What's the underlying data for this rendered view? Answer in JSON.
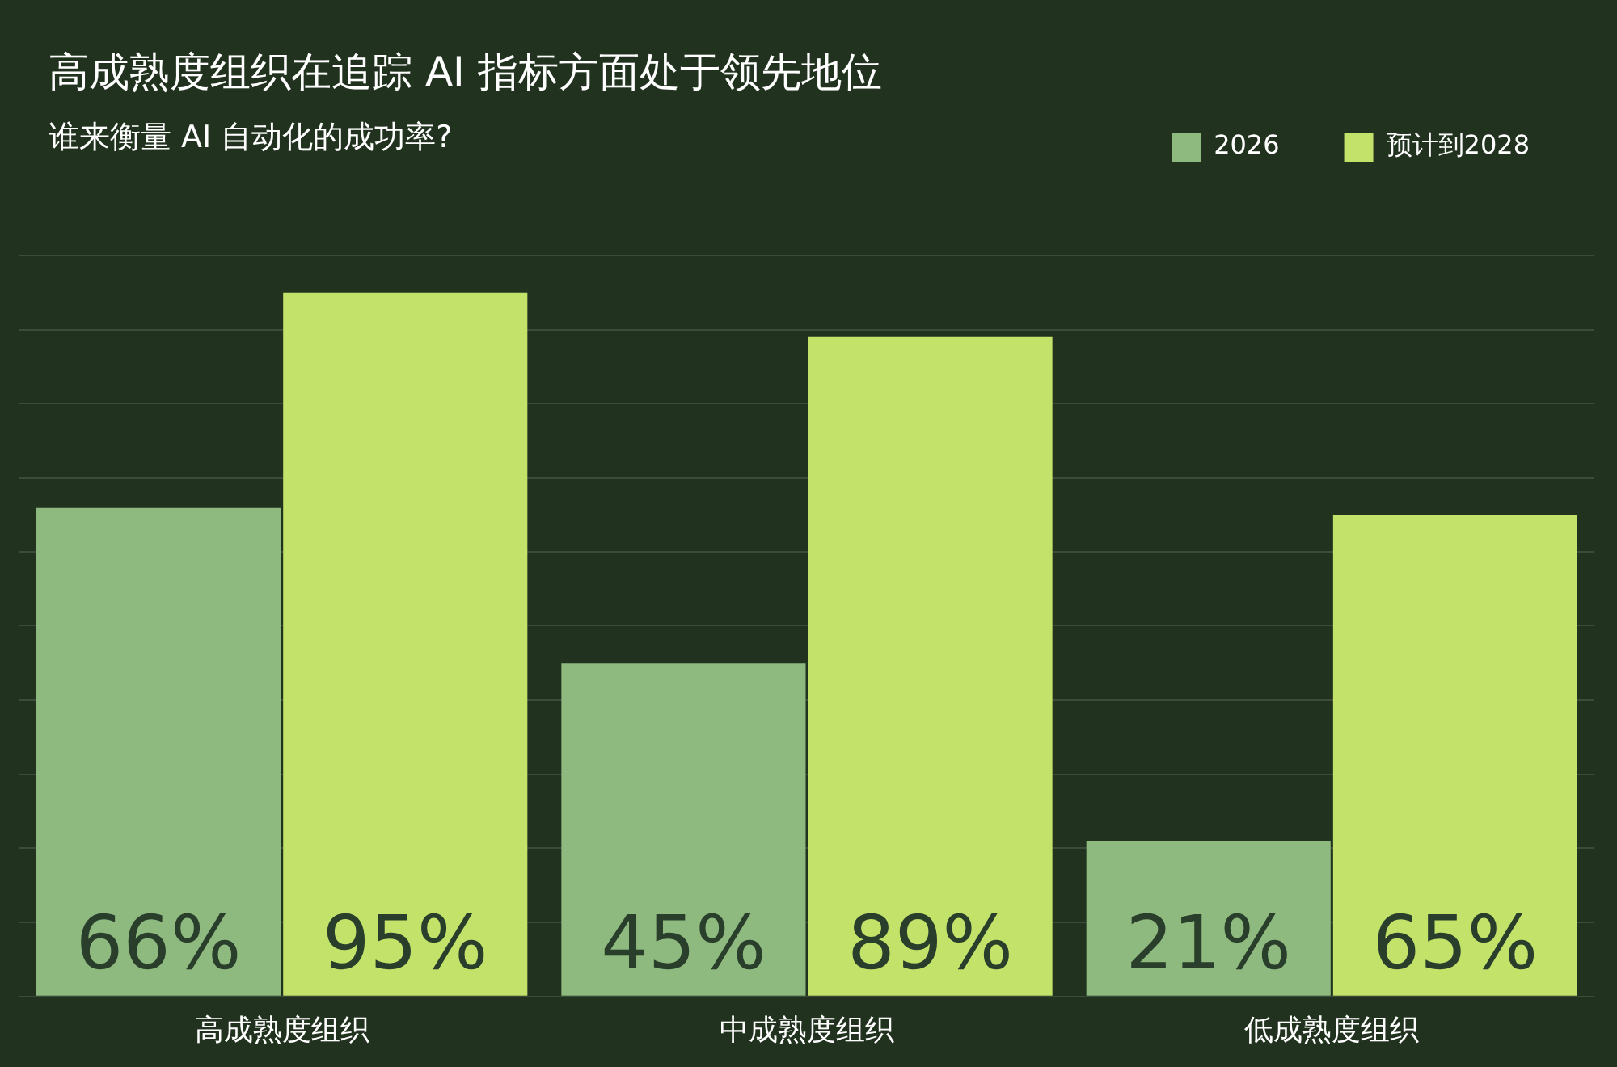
{
  "chart_data": {
    "type": "bar",
    "title": "高成熟度组织在追踪 AI 指标方面处于领先地位",
    "subtitle": "谁来衡量 AI 自动化的成功率?",
    "categories": [
      "高成熟度组织",
      "中成熟度组织",
      "低成熟度组织"
    ],
    "series": [
      {
        "name": "2026",
        "color": "#8fba7f",
        "values": [
          66,
          45,
          21
        ],
        "value_labels": [
          "66%",
          "45%",
          "21%"
        ]
      },
      {
        "name": "预计到2028",
        "color": "#c3e26a",
        "values": [
          95,
          89,
          65
        ],
        "value_labels": [
          "95%",
          "89%",
          "65%"
        ]
      }
    ],
    "grid": "y",
    "tick_labels": "x",
    "legend": "top right"
  }
}
